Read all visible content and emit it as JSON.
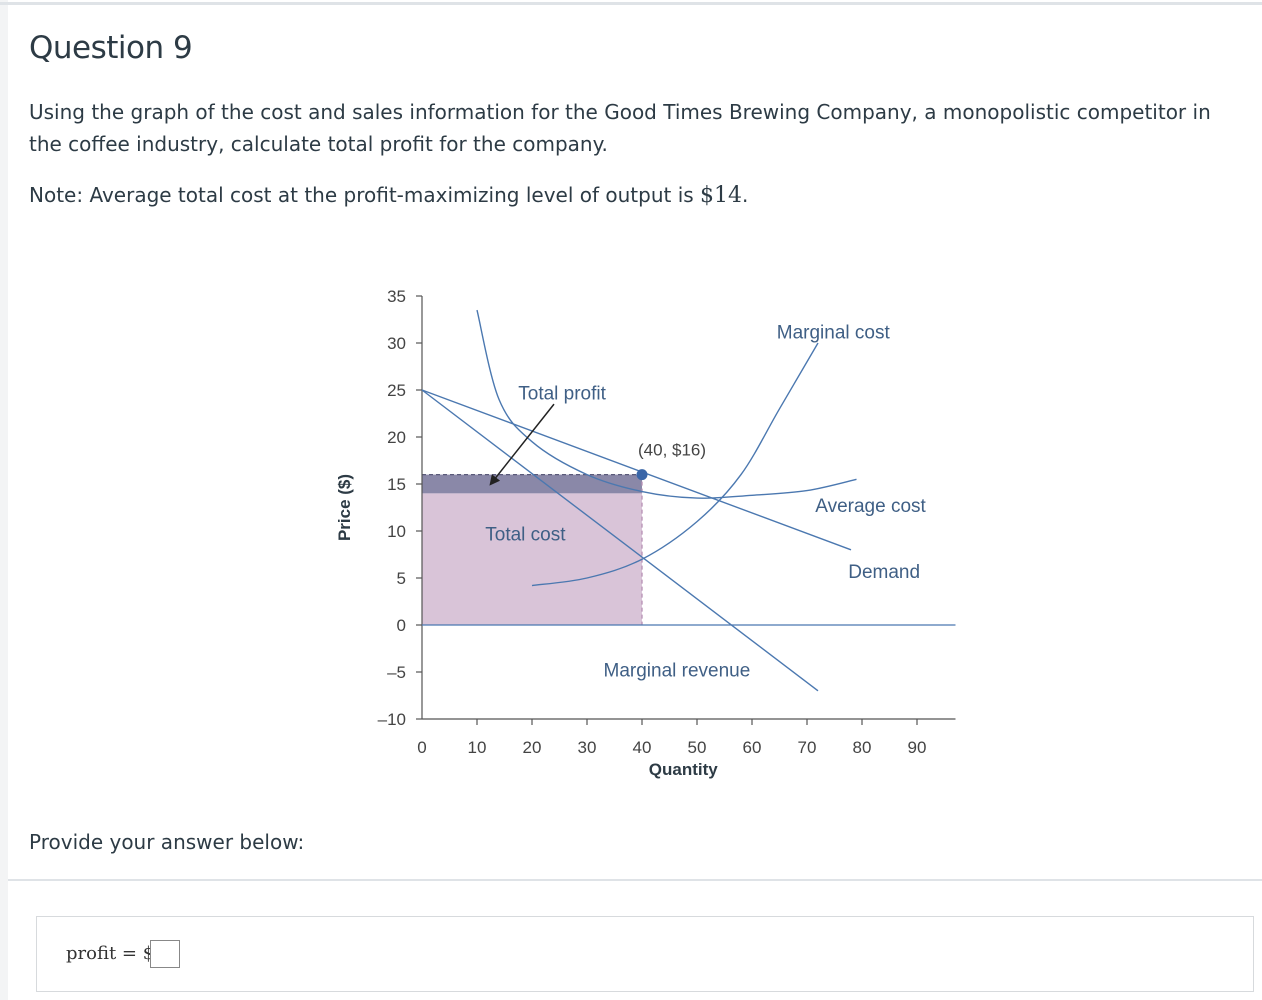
{
  "question": {
    "title": "Question 9",
    "text": "Using the graph of the cost and sales information for the Good Times Brewing Company, a monopolistic competitor in the coffee industry, calculate total profit for the company.",
    "note_prefix": "Note: Average total cost at the profit-maximizing level of output is ",
    "note_amount": "$14",
    "note_suffix": "."
  },
  "provide_label": "Provide your answer below:",
  "answer": {
    "label": "profit = $",
    "value": ""
  },
  "chart_data": {
    "type": "line",
    "xlabel": "Quantity",
    "ylabel": "Price ($)",
    "xlim": [
      0,
      97
    ],
    "ylim": [
      -10,
      35
    ],
    "xticks": [
      "0",
      "10",
      "20",
      "30",
      "40",
      "50",
      "60",
      "70",
      "80",
      "90"
    ],
    "yticks": [
      "35",
      "30",
      "25",
      "20",
      "15",
      "10",
      "5",
      "0",
      "–5",
      "–10"
    ],
    "series": [
      {
        "name": "Demand",
        "points": [
          [
            0,
            25
          ],
          [
            78,
            8
          ]
        ]
      },
      {
        "name": "Marginal revenue",
        "points": [
          [
            0,
            25
          ],
          [
            72,
            -7
          ]
        ]
      },
      {
        "name": "Average cost",
        "points": [
          [
            10,
            33.5
          ],
          [
            14,
            24
          ],
          [
            20,
            19.5
          ],
          [
            30,
            16
          ],
          [
            40,
            14.2
          ],
          [
            50,
            13.5
          ],
          [
            60,
            13.8
          ],
          [
            70,
            14.3
          ],
          [
            79,
            15.5
          ]
        ]
      },
      {
        "name": "Marginal cost",
        "points": [
          [
            20,
            4.2
          ],
          [
            30,
            5
          ],
          [
            40,
            7
          ],
          [
            50,
            11
          ],
          [
            58,
            16
          ],
          [
            65,
            23
          ],
          [
            72,
            30
          ]
        ]
      }
    ],
    "profit_maximizing_point": {
      "x": 40,
      "y": 16,
      "label": "(40, $16)"
    },
    "areas": [
      {
        "name": "Total profit",
        "x": [
          0,
          40
        ],
        "y": [
          14,
          16
        ],
        "color": "#8a88a8"
      },
      {
        "name": "Total cost",
        "x": [
          0,
          40
        ],
        "y": [
          0,
          14
        ],
        "color": "#d9c4d8"
      }
    ],
    "annotations": {
      "total_profit": "Total profit",
      "total_cost": "Total cost",
      "marginal_cost": "Marginal cost",
      "average_cost": "Average cost",
      "demand": "Demand",
      "marginal_revenue": "Marginal revenue"
    },
    "colors": {
      "curve": "#4b78b0",
      "point": "#3a66a8",
      "axis": "#555555"
    }
  }
}
